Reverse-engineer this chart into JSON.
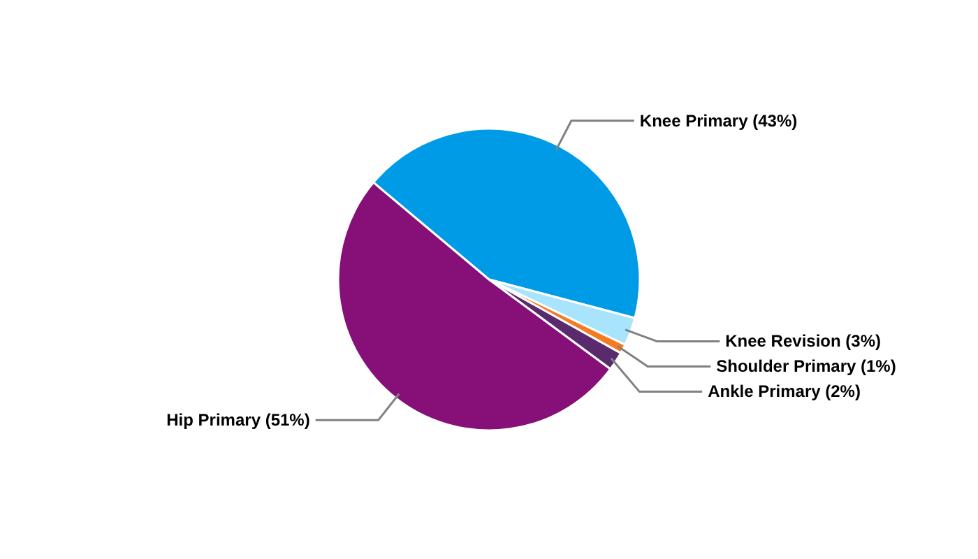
{
  "chart_data": {
    "type": "pie",
    "categories": [
      "Knee Primary",
      "Knee Revision",
      "Shoulder Primary",
      "Ankle Primary",
      "Hip Primary"
    ],
    "values": [
      43,
      3,
      1,
      2,
      51
    ],
    "colors": [
      "#009be6",
      "#a8e4fb",
      "#f47b20",
      "#5a2a6e",
      "#861078"
    ],
    "value_labels": [
      "(43%)",
      "(3%)",
      "(1%)",
      "(2%)",
      "(51%)"
    ]
  }
}
